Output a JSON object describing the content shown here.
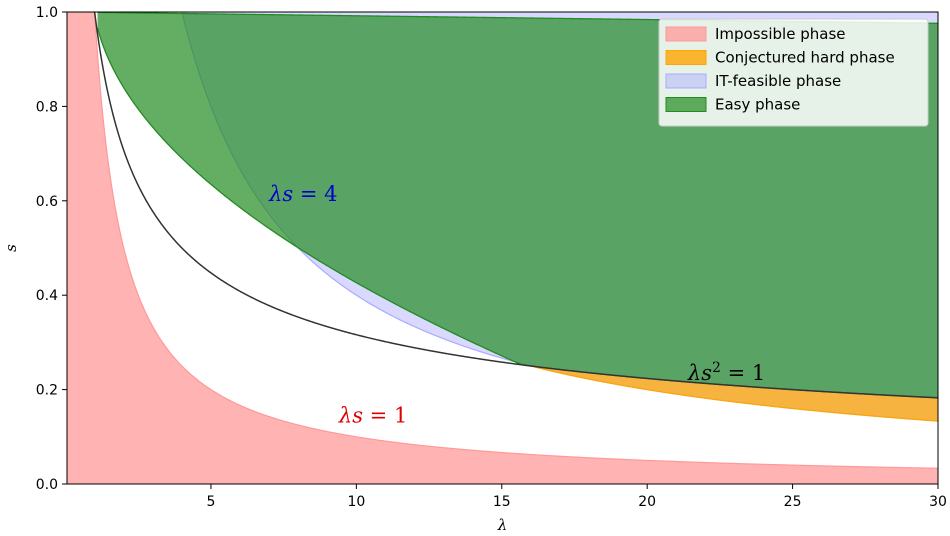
{
  "chart_data": {
    "type": "area",
    "xlabel": "λ",
    "ylabel": "s",
    "xlim": [
      0.05,
      30
    ],
    "ylim": [
      0,
      1
    ],
    "xticks": [
      5,
      10,
      15,
      20,
      25,
      30
    ],
    "yticks": [
      0.0,
      0.2,
      0.4,
      0.6,
      0.8,
      1.0
    ],
    "grid": false,
    "legend_position": "top-right",
    "colors": {
      "impossible": "#ff9999",
      "hard": "#ffa500",
      "feasible": "#aaaaff",
      "easy": "#228b22",
      "curve": "#333333"
    },
    "series": [
      {
        "name": "Impossible phase",
        "key": "impossible",
        "region": "0 ≤ s ≤ min(1, 1/λ)"
      },
      {
        "name": "Conjectured hard phase",
        "key": "hard",
        "region": "max(4/λ, 1.75/(4+λ)+0.07) ≤ s ≤ λ^(-1/2)"
      },
      {
        "name": "IT-feasible phase",
        "key": "feasible",
        "region": "max(4/λ, 1.75/(4+λ)+0.07) ≤ s ≤ 1"
      },
      {
        "name": "Easy phase",
        "key": "easy",
        "region": "max(λ^(-1/2), 1 − 0.075·√λ + …) ≤ s ≤ 1, λ ≥ 1"
      }
    ],
    "annotations": [
      {
        "key": "red",
        "x": 7.0,
        "y": 0.6,
        "var": "λs",
        "eq": " = 4",
        "color": "#0000cc"
      },
      {
        "key": "black",
        "x": 21.4,
        "y": 0.22,
        "var": "λs",
        "sup": "2",
        "eq": " = 1",
        "color": "#000000"
      },
      {
        "key": "red2",
        "x": 9.4,
        "y": 0.13,
        "var": "λs",
        "eq": " = 1",
        "color": "#dd0000"
      }
    ]
  }
}
